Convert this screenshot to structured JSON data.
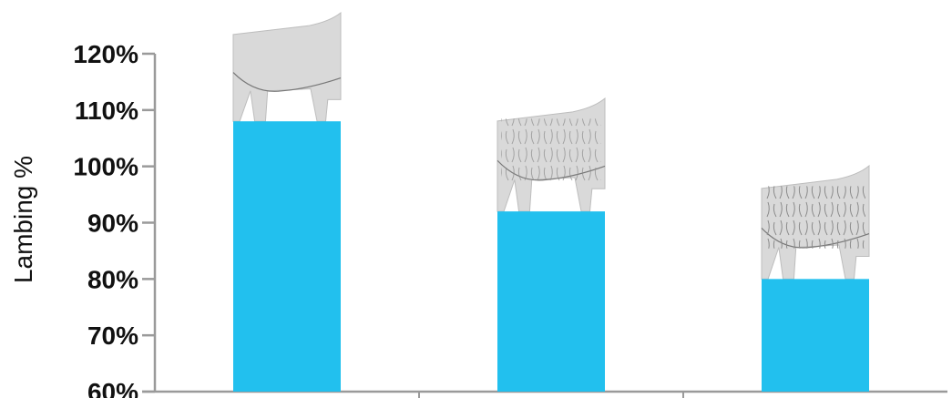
{
  "chart_data": {
    "type": "bar",
    "categories": [
      "",
      "",
      ""
    ],
    "values": [
      108,
      92,
      80
    ],
    "ylabel": "Lambing %",
    "ylim": [
      60,
      120
    ],
    "yticks": [
      60,
      70,
      80,
      90,
      100,
      110,
      120
    ],
    "ytick_labels": [
      "60%",
      "70%",
      "80%",
      "90%",
      "100%",
      "110%",
      "120%"
    ],
    "bar_color": "#22c0ee",
    "axis_color": "#9a9a9a",
    "bar_images": [
      "sheep-smooth-icon",
      "sheep-wrinkled-icon",
      "sheep-very-wrinkled-icon"
    ],
    "grid": false,
    "legend": "none"
  }
}
